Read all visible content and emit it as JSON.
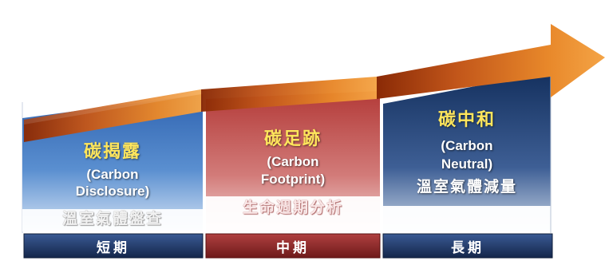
{
  "stages": [
    {
      "title": "碳揭露",
      "english_line1": "(Carbon",
      "english_line2": "Disclosure)",
      "subtitle": "溫室氣體盤查",
      "term": "短期"
    },
    {
      "title": "碳足跡",
      "english_line1": "(Carbon",
      "english_line2": "Footprint)",
      "subtitle": "生命週期分析",
      "term": "中期"
    },
    {
      "title": "碳中和",
      "english_line1": "(Carbon",
      "english_line2": "Neutral)",
      "subtitle": "溫室氣體減量",
      "term": "長期"
    }
  ],
  "colors": {
    "block_short": "#4f86c6",
    "block_mid": "#c0504d",
    "block_long": "#1f3a66",
    "arrow": "#e07a1e",
    "bar_short": "#243b6a",
    "bar_mid": "#8f2a2a",
    "bar_long": "#1c2f55",
    "title_yellow": "#ffe65c"
  }
}
